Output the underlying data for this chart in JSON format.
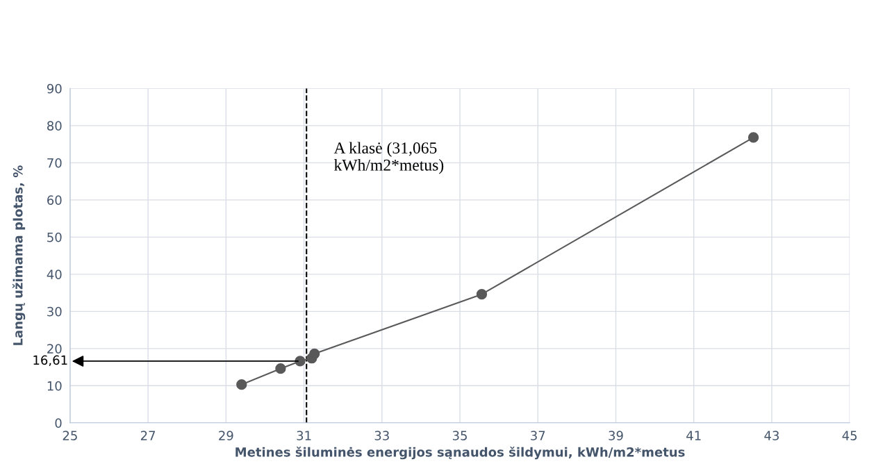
{
  "chart_data": {
    "type": "line",
    "xlabel": "Metines šiluminės energijos sąnaudos šildymui, kWh/m2*metus",
    "ylabel": "Langų užimama plotas, %",
    "x": [
      29.4,
      30.4,
      30.9,
      31.2,
      31.27,
      35.56,
      42.53
    ],
    "series": [
      {
        "color": "#595959",
        "values": [
          10.3,
          14.6,
          16.61,
          17.4,
          18.6,
          34.6,
          76.8
        ]
      }
    ],
    "marker": "circle",
    "line_style": "solid",
    "xlim": [
      25,
      45
    ],
    "xticks": [
      25,
      27,
      29,
      31,
      33,
      35,
      37,
      39,
      41,
      43,
      45
    ],
    "ylim": [
      0,
      90
    ],
    "yticks": [
      0,
      10,
      20,
      30,
      40,
      50,
      60,
      70,
      80,
      90
    ],
    "grid": true,
    "ref_lines": [
      {
        "axis": "x",
        "value": 31.065,
        "label": "A klasė (31,065\nkWh/m2*metus)",
        "color": "#000000",
        "line_style": "dashed"
      }
    ],
    "annotations": [
      {
        "text": "16,61",
        "x": 30.9,
        "y": 16.61
      }
    ]
  }
}
